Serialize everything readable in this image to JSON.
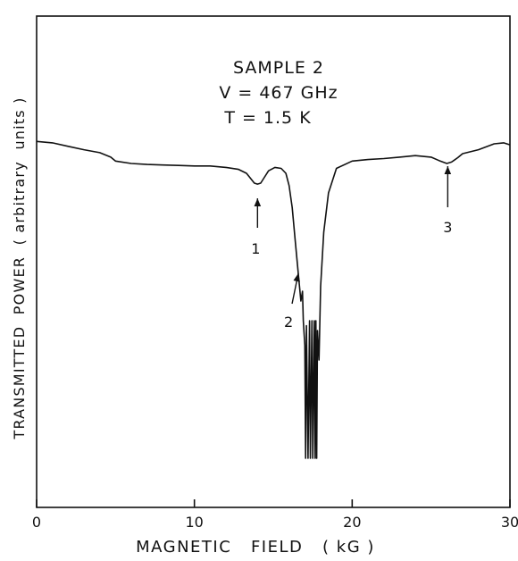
{
  "chart_data": {
    "type": "line",
    "xlabel": "MAGNETIC   FIELD   ( kG )",
    "ylabel": "TRANSMITTED  POWER  ( arbitrary  units )",
    "xlim": [
      0,
      30
    ],
    "ylim": [
      0,
      1
    ],
    "x_ticks": [
      "0",
      "10",
      "20",
      "30"
    ],
    "y_ticks": [],
    "grid": false,
    "legend": "none",
    "annotation_lines": [
      "SAMPLE 2",
      "V = 467 GHz",
      "T = 1.5 K"
    ],
    "markers": [
      {
        "label": "1",
        "x": 14.0
      },
      {
        "label": "2",
        "x": 16.7
      },
      {
        "label": "3",
        "x": 26.0
      }
    ],
    "series": [
      {
        "line_color": "#111111",
        "points": [
          [
            0.0,
            0.745
          ],
          [
            1.0,
            0.742
          ],
          [
            2.0,
            0.735
          ],
          [
            3.0,
            0.728
          ],
          [
            4.0,
            0.722
          ],
          [
            4.7,
            0.713
          ],
          [
            5.0,
            0.705
          ],
          [
            6.0,
            0.7
          ],
          [
            7.0,
            0.698
          ],
          [
            8.0,
            0.697
          ],
          [
            9.0,
            0.696
          ],
          [
            10.0,
            0.695
          ],
          [
            11.0,
            0.695
          ],
          [
            12.0,
            0.692
          ],
          [
            12.8,
            0.688
          ],
          [
            13.3,
            0.68
          ],
          [
            13.6,
            0.668
          ],
          [
            13.8,
            0.66
          ],
          [
            14.0,
            0.658
          ],
          [
            14.2,
            0.66
          ],
          [
            14.4,
            0.67
          ],
          [
            14.7,
            0.685
          ],
          [
            15.1,
            0.692
          ],
          [
            15.5,
            0.69
          ],
          [
            15.8,
            0.68
          ],
          [
            16.0,
            0.655
          ],
          [
            16.2,
            0.61
          ],
          [
            16.4,
            0.54
          ],
          [
            16.6,
            0.47
          ],
          [
            16.75,
            0.42
          ],
          [
            16.85,
            0.44
          ],
          [
            16.9,
            0.38
          ],
          [
            17.0,
            0.33
          ],
          [
            17.05,
            0.1
          ],
          [
            17.1,
            0.37
          ],
          [
            17.2,
            0.1
          ],
          [
            17.3,
            0.38
          ],
          [
            17.35,
            0.1
          ],
          [
            17.45,
            0.38
          ],
          [
            17.5,
            0.1
          ],
          [
            17.6,
            0.38
          ],
          [
            17.65,
            0.1
          ],
          [
            17.7,
            0.38
          ],
          [
            17.75,
            0.1
          ],
          [
            17.8,
            0.36
          ],
          [
            17.9,
            0.3
          ],
          [
            18.0,
            0.45
          ],
          [
            18.2,
            0.56
          ],
          [
            18.5,
            0.64
          ],
          [
            19.0,
            0.69
          ],
          [
            20.0,
            0.705
          ],
          [
            21.0,
            0.708
          ],
          [
            22.0,
            0.71
          ],
          [
            23.0,
            0.713
          ],
          [
            24.0,
            0.716
          ],
          [
            25.0,
            0.713
          ],
          [
            25.5,
            0.706
          ],
          [
            26.0,
            0.7
          ],
          [
            26.3,
            0.703
          ],
          [
            26.7,
            0.712
          ],
          [
            27.0,
            0.72
          ],
          [
            28.0,
            0.728
          ],
          [
            29.0,
            0.74
          ],
          [
            29.6,
            0.742
          ],
          [
            30.0,
            0.738
          ]
        ]
      }
    ]
  }
}
